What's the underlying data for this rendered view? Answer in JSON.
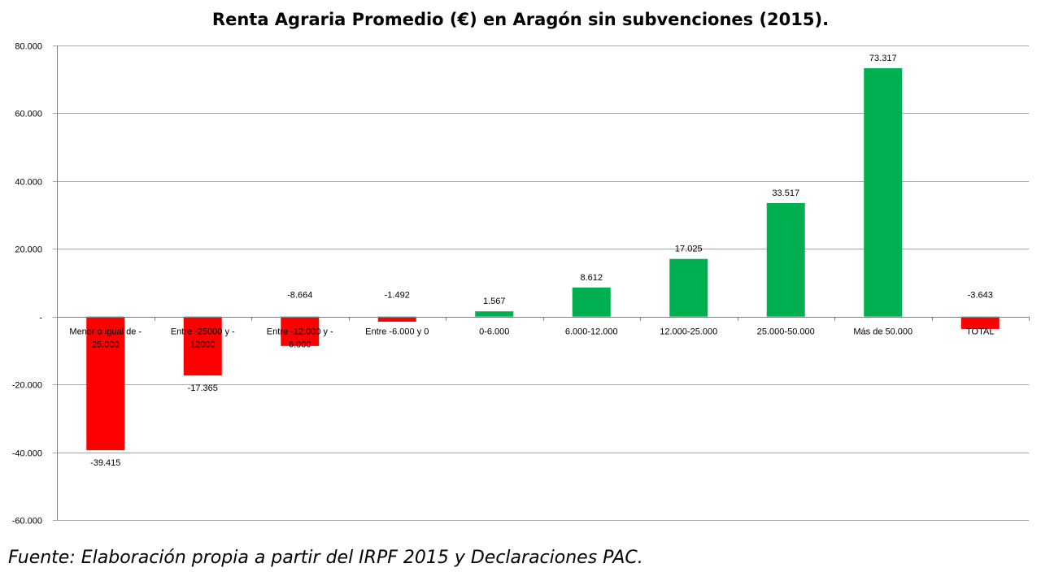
{
  "chart_data": {
    "type": "bar",
    "title": "Renta Agraria Promedio (€) en Aragón sin subvenciones (2015).",
    "categories": [
      [
        "Menor o igual de -",
        "25.000"
      ],
      [
        "Entre -25000 y -",
        "12000"
      ],
      [
        "Entre -12.000 y -",
        "6.000"
      ],
      [
        "Entre -6.000 y 0"
      ],
      [
        "0-6.000"
      ],
      [
        "6.000-12.000"
      ],
      [
        "12.000-25.000"
      ],
      [
        "25.000-50.000"
      ],
      [
        "Más de 50.000"
      ],
      [
        "TOTAL"
      ]
    ],
    "values": [
      -39415,
      -17365,
      -8664,
      -1492,
      1567,
      8612,
      17025,
      33517,
      73317,
      -3643
    ],
    "value_labels": [
      "-39.415",
      "-17.365",
      "-8.664",
      "-1.492",
      "1.567",
      "8.612",
      "17.025",
      "33.517",
      "73.317",
      "-3.643"
    ],
    "ylim": [
      -60000,
      80000
    ],
    "y_ticks": [
      80000,
      60000,
      40000,
      20000,
      0,
      -20000,
      -40000,
      -60000
    ],
    "y_tick_labels": [
      "80.000",
      "60.000",
      "40.000",
      "20.000",
      "-",
      "-20.000",
      "-40.000",
      "-60.000"
    ],
    "grid": true,
    "colors": {
      "positive": "#00b050",
      "negative": "#ff0000",
      "grid": "#a6a6a6",
      "axis": "#808080"
    }
  },
  "source": "Fuente: Elaboración propia a partir del IRPF 2015 y Declaraciones PAC."
}
